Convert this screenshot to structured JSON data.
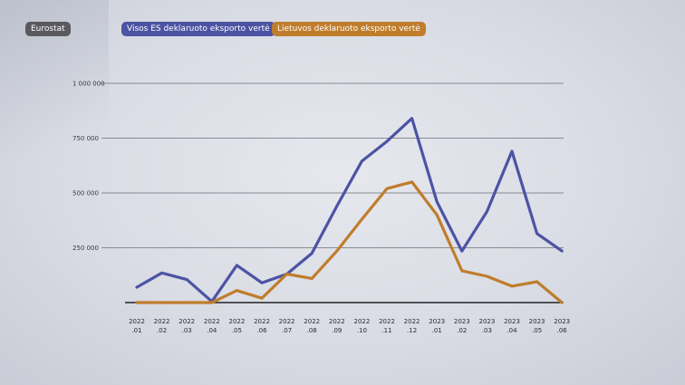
{
  "source_label": "Eurostat",
  "colors": {
    "series_1": "#4d53a3",
    "series_2": "#c07d2c",
    "source_bg": "#5a5a5e",
    "grid": "#6b6e78",
    "baseline": "#222228"
  },
  "chart_data": {
    "type": "line",
    "title": "",
    "xlabel": "",
    "ylabel": "",
    "categories": [
      "2022 .01",
      "2022 .02",
      "2022 .03",
      "2022 .04",
      "2022 .05",
      "2022 .06",
      "2022 .07",
      "2022 .08",
      "2022 .09",
      "2022 .10",
      "2022 .11",
      "2022 .12",
      "2023 .01",
      "2023 .02",
      "2023 .03",
      "2023 .04",
      "2023 .05",
      "2023 .06"
    ],
    "x_ticks": [
      {
        "year": "2022",
        "month": ".01"
      },
      {
        "year": "2022",
        "month": ".02"
      },
      {
        "year": "2022",
        "month": ".03"
      },
      {
        "year": "2022",
        "month": ".04"
      },
      {
        "year": "2022",
        "month": ".05"
      },
      {
        "year": "2022",
        "month": ".06"
      },
      {
        "year": "2022",
        "month": ".07"
      },
      {
        "year": "2022",
        "month": ".08"
      },
      {
        "year": "2022",
        "month": ".09"
      },
      {
        "year": "2022",
        "month": ".10"
      },
      {
        "year": "2022",
        "month": ".11"
      },
      {
        "year": "2022",
        "month": ".12"
      },
      {
        "year": "2023",
        "month": ".01"
      },
      {
        "year": "2023",
        "month": ".02"
      },
      {
        "year": "2023",
        "month": ".03"
      },
      {
        "year": "2023",
        "month": ".04"
      },
      {
        "year": "2023",
        "month": ".05"
      },
      {
        "year": "2023",
        "month": ".06"
      }
    ],
    "y_ticks": [
      {
        "value": 250000,
        "label": "250 000"
      },
      {
        "value": 500000,
        "label": "500 000"
      },
      {
        "value": 750000,
        "label": "750 000"
      },
      {
        "value": 1000000,
        "label": "1 000 000"
      }
    ],
    "ylim": [
      0,
      1000000
    ],
    "grid": true,
    "legend_position": "top-left",
    "series": [
      {
        "name": "Visos ES deklaruoto eksporto vertė",
        "values": [
          70000,
          135000,
          105000,
          5000,
          170000,
          90000,
          130000,
          225000,
          440000,
          645000,
          735000,
          840000,
          460000,
          235000,
          415000,
          690000,
          315000,
          235000
        ]
      },
      {
        "name": "Lietuvos deklaruoto eksporto vertė",
        "values": [
          0,
          0,
          0,
          0,
          55000,
          20000,
          130000,
          110000,
          235000,
          380000,
          520000,
          550000,
          400000,
          145000,
          120000,
          75000,
          95000,
          0
        ]
      }
    ]
  }
}
